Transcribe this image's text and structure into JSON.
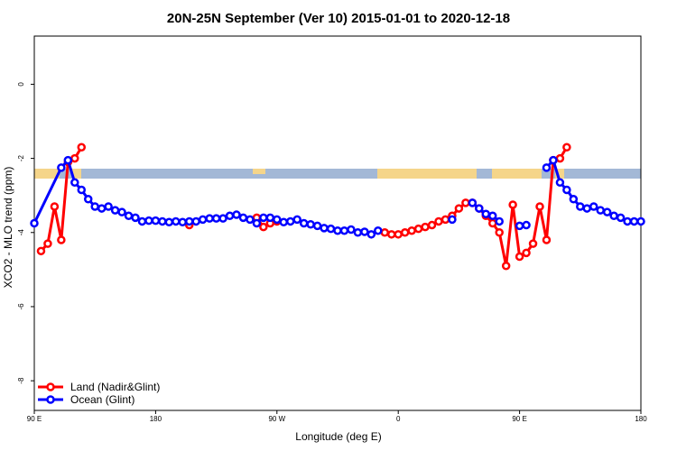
{
  "chart_data": {
    "type": "line",
    "title": "20N-25N September (Ver 10)   2015-01-01 to 2020-12-18",
    "x_label": "Longitude (deg E)",
    "y_label": "XCO2 - MLO trend (ppm)",
    "xlim": [
      90,
      540
    ],
    "xticks": [
      {
        "value": 90,
        "label": "90 E"
      },
      180,
      {
        "value": 270,
        "label": "90 W"
      },
      {
        "value": 360,
        "label": "0"
      },
      {
        "value": 450,
        "label": "90 E"
      },
      {
        "value": 540,
        "label": "180"
      }
    ],
    "ylim": [
      -8.8,
      1.3
    ],
    "yticks": [
      0,
      -2,
      -4,
      -6,
      -8
    ],
    "legend": "bottom-left",
    "series": [
      {
        "name": "Land (Nadir&Glint)",
        "color": "#ff0000",
        "x": [
          95,
          100,
          105,
          110,
          115,
          120,
          125,
          130,
          205,
          210,
          255,
          260,
          265,
          270,
          275,
          350,
          355,
          360,
          365,
          370,
          375,
          380,
          385,
          390,
          395,
          400,
          405,
          410,
          415,
          420,
          425,
          430,
          435,
          440,
          445,
          450,
          455,
          460,
          465,
          470,
          475,
          480,
          485
        ],
        "values": [
          -4.5,
          -4.3,
          -3.3,
          -4.2,
          -2.1,
          -2.0,
          -1.7,
          null,
          -3.8,
          null,
          -3.6,
          -3.85,
          -3.75,
          -3.7,
          null,
          -4.0,
          -4.05,
          -4.05,
          -4.0,
          -3.95,
          -3.9,
          -3.85,
          -3.8,
          -3.7,
          -3.65,
          -3.55,
          -3.35,
          -3.2,
          -3.2,
          -3.35,
          -3.55,
          -3.75,
          -4.0,
          -4.9,
          -3.25,
          -4.65,
          -4.55,
          -4.3,
          -3.3,
          -4.2,
          -2.05,
          -2.0,
          -1.7
        ]
      },
      {
        "name": "Ocean (Glint)",
        "color": "#0000ff",
        "x": [
          90,
          110,
          115,
          120,
          125,
          130,
          135,
          140,
          145,
          150,
          155,
          160,
          165,
          170,
          175,
          180,
          185,
          190,
          195,
          200,
          205,
          210,
          215,
          220,
          225,
          230,
          235,
          240,
          245,
          250,
          255,
          260,
          265,
          270,
          275,
          280,
          285,
          290,
          295,
          300,
          305,
          310,
          315,
          320,
          325,
          330,
          335,
          340,
          345,
          350,
          400,
          405,
          415,
          420,
          425,
          430,
          435,
          440,
          450,
          455,
          460,
          470,
          475,
          480,
          485,
          490,
          495,
          500,
          505,
          510,
          515,
          520,
          525,
          530,
          535,
          540
        ],
        "values": [
          -3.75,
          -2.25,
          -2.05,
          -2.65,
          -2.85,
          -3.1,
          -3.3,
          -3.35,
          -3.3,
          -3.4,
          -3.45,
          -3.55,
          -3.6,
          -3.7,
          -3.68,
          -3.68,
          -3.7,
          -3.72,
          -3.7,
          -3.72,
          -3.7,
          -3.7,
          -3.65,
          -3.62,
          -3.62,
          -3.62,
          -3.55,
          -3.52,
          -3.6,
          -3.65,
          -3.75,
          -3.6,
          -3.6,
          -3.65,
          -3.72,
          -3.7,
          -3.65,
          -3.75,
          -3.78,
          -3.82,
          -3.88,
          -3.9,
          -3.95,
          -3.95,
          -3.92,
          -4.0,
          -3.98,
          -4.05,
          -3.95,
          null,
          -3.65,
          null,
          -3.2,
          -3.35,
          -3.5,
          -3.55,
          -3.7,
          null,
          -3.82,
          -3.8,
          null,
          -2.25,
          -2.05,
          -2.65,
          -2.85,
          -3.1,
          -3.3,
          -3.35,
          -3.3,
          -3.4,
          -3.45,
          -3.55,
          -3.6,
          -3.7,
          -3.7,
          -3.7
        ]
      }
    ]
  }
}
